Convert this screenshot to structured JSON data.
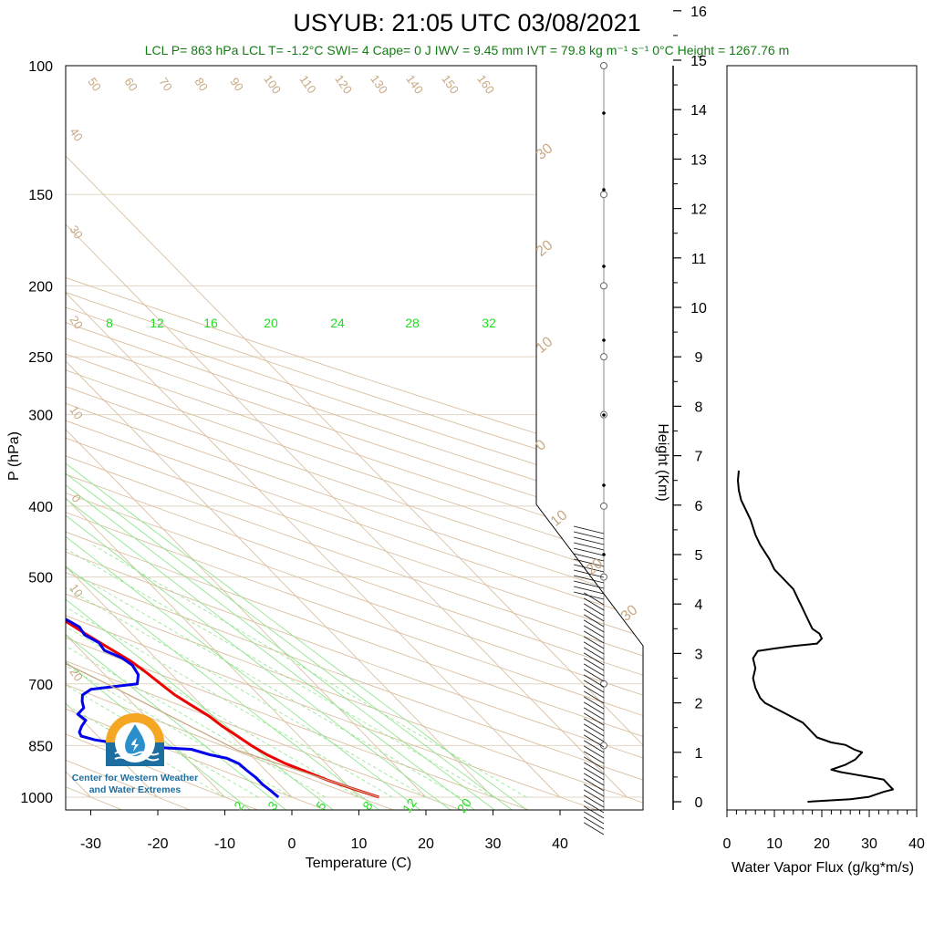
{
  "title": "USYUB: 21:05 UTC 03/08/2021",
  "subtitle": "LCL P= 863 hPa  LCL T= -1.2°C  SWI= 4  Cape= 0 J  IWV = 9.45 mm  IVT = 79.8 kg m⁻¹ s⁻¹  0°C Height = 1267.76 m",
  "logo": {
    "icon": "water-drop-sun-icon",
    "line1": "Center for Western Weather",
    "line2": "and Water Extremes"
  },
  "chart_data": [
    {
      "type": "line",
      "chart": "skew-t",
      "xlabel": "Temperature (C)",
      "ylabel": "P (hPa)",
      "pressure_axis": {
        "scale": "log",
        "range": [
          1000,
          100
        ],
        "ticks": [
          100,
          150,
          200,
          250,
          300,
          400,
          500,
          700,
          850,
          1000
        ]
      },
      "temperature_axis": {
        "range": [
          -34,
          50
        ],
        "ticks": [
          -30,
          -20,
          -10,
          0,
          10,
          20,
          30,
          40
        ]
      },
      "height_axis": {
        "label": "Height (Km)",
        "ticks": [
          0,
          1,
          2,
          3,
          4,
          5,
          6,
          7,
          8,
          9,
          10,
          11,
          12,
          13,
          14,
          15,
          16
        ]
      },
      "isotherm_labels": [
        "50",
        "60",
        "70",
        "80",
        "90",
        "100",
        "110",
        "120",
        "130",
        "140",
        "150",
        "160",
        "40",
        "30",
        "20",
        "10",
        "0",
        "10",
        "20"
      ],
      "dry_adiabat_labels": [
        "30",
        "20",
        "10",
        "0",
        "10",
        "20",
        "30"
      ],
      "mixing_ratio_labels_top": [
        "8",
        "12",
        "16",
        "20",
        "24",
        "28",
        "32"
      ],
      "mixing_ratio_labels_bottom": [
        "2",
        "3",
        "5",
        "8",
        "12",
        "20"
      ],
      "series": [
        {
          "name": "Temperature",
          "color": "#ee0000",
          "points": [
            [
              1000,
              13
            ],
            [
              975,
              10.5
            ],
            [
              950,
              8
            ],
            [
              925,
              6
            ],
            [
              900,
              4
            ],
            [
              875,
              2.5
            ],
            [
              850,
              1.5
            ],
            [
              825,
              0.8
            ],
            [
              800,
              0
            ],
            [
              775,
              -0.5
            ],
            [
              750,
              -1.5
            ],
            [
              725,
              -2.5
            ],
            [
              700,
              -3
            ],
            [
              685,
              -3.3
            ],
            [
              670,
              -3.6
            ],
            [
              650,
              -4.2
            ],
            [
              625,
              -5.5
            ],
            [
              600,
              -6.8
            ],
            [
              575,
              -8
            ],
            [
              550,
              -9.5
            ],
            [
              525,
              -10.8
            ],
            [
              500,
              -12
            ],
            [
              490,
              -13.3
            ],
            [
              480,
              -14.3
            ],
            [
              470,
              -15
            ],
            [
              460,
              -15.3
            ],
            [
              450,
              -16
            ],
            [
              440,
              -16.6
            ],
            [
              430,
              -17.2
            ]
          ]
        },
        {
          "name": "Dew point",
          "color": "#0000ee",
          "points": [
            [
              1000,
              -2
            ],
            [
              980,
              -2.2
            ],
            [
              960,
              -2.5
            ],
            [
              940,
              -2.5
            ],
            [
              920,
              -2.8
            ],
            [
              900,
              -3
            ],
            [
              885,
              -4
            ],
            [
              875,
              -6
            ],
            [
              860,
              -8
            ],
            [
              855,
              -13
            ],
            [
              845,
              -18
            ],
            [
              835,
              -21
            ],
            [
              825,
              -22.5
            ],
            [
              815,
              -22.2
            ],
            [
              800,
              -21
            ],
            [
              785,
              -19.5
            ],
            [
              770,
              -19.8
            ],
            [
              755,
              -18
            ],
            [
              740,
              -17.3
            ],
            [
              725,
              -16.3
            ],
            [
              712,
              -14.2
            ],
            [
              700,
              -6.5
            ],
            [
              680,
              -5
            ],
            [
              660,
              -4.5
            ],
            [
              645,
              -5
            ],
            [
              630,
              -6.5
            ],
            [
              615,
              -6.2
            ],
            [
              600,
              -7.2
            ],
            [
              585,
              -6.8
            ],
            [
              570,
              -7.8
            ],
            [
              560,
              -7.5
            ],
            [
              550,
              -8.2
            ],
            [
              540,
              -9.5
            ],
            [
              525,
              -11.5
            ],
            [
              515,
              -13
            ],
            [
              505,
              -14.3
            ],
            [
              498,
              -16.5
            ],
            [
              490,
              -19
            ],
            [
              485,
              -21
            ],
            [
              478,
              -24
            ],
            [
              472,
              -28.7
            ],
            [
              465,
              -33
            ],
            [
              458,
              -35
            ],
            [
              448,
              -36
            ],
            [
              440,
              -36.2
            ],
            [
              430,
              -35.8
            ]
          ]
        },
        {
          "name": "Parcel",
          "color": "#c8a882",
          "points": [
            [
              1000,
              13
            ],
            [
              863,
              -1.2
            ],
            [
              700,
              -11
            ],
            [
              500,
              -28
            ],
            [
              400,
              -42
            ],
            [
              300,
              -55
            ],
            [
              228,
              -62
            ],
            [
              200,
              -68
            ],
            [
              150,
              -78
            ],
            [
              100,
              -95
            ]
          ]
        }
      ]
    },
    {
      "type": "line",
      "xlabel": "Water Vapor Flux (g/kg*m/s)",
      "ylabel": "Height (Km)",
      "xlim": [
        0,
        40
      ],
      "x_ticks": [
        0,
        10,
        20,
        30,
        40
      ],
      "ylim": [
        0,
        16
      ],
      "series": [
        {
          "name": "",
          "color": "#000000",
          "points": [
            [
              17,
              0
            ],
            [
              26,
              0.05
            ],
            [
              30,
              0.1
            ],
            [
              33,
              0.2
            ],
            [
              35,
              0.25
            ],
            [
              33,
              0.45
            ],
            [
              30,
              0.5
            ],
            [
              27,
              0.55
            ],
            [
              24,
              0.6
            ],
            [
              22,
              0.65
            ],
            [
              25,
              0.75
            ],
            [
              27,
              0.85
            ],
            [
              28.5,
              1
            ],
            [
              27,
              1.05
            ],
            [
              25,
              1.15
            ],
            [
              22,
              1.2
            ],
            [
              19,
              1.3
            ],
            [
              17,
              1.5
            ],
            [
              16,
              1.6
            ],
            [
              14,
              1.7
            ],
            [
              12,
              1.8
            ],
            [
              10,
              1.9
            ],
            [
              8,
              2
            ],
            [
              7,
              2.1
            ],
            [
              6,
              2.3
            ],
            [
              5.5,
              2.5
            ],
            [
              6,
              2.7
            ],
            [
              5.5,
              2.9
            ],
            [
              6.5,
              3.05
            ],
            [
              10,
              3.1
            ],
            [
              14,
              3.15
            ],
            [
              19,
              3.2
            ],
            [
              20,
              3.3
            ],
            [
              19.5,
              3.4
            ],
            [
              18,
              3.5
            ],
            [
              17,
              3.7
            ],
            [
              16,
              3.9
            ],
            [
              15,
              4.1
            ],
            [
              14,
              4.3
            ],
            [
              12,
              4.5
            ],
            [
              10,
              4.7
            ],
            [
              9,
              4.9
            ],
            [
              7,
              5.2
            ],
            [
              6,
              5.4
            ],
            [
              5,
              5.7
            ],
            [
              4,
              5.9
            ],
            [
              3,
              6.1
            ],
            [
              2.5,
              6.3
            ],
            [
              2.3,
              6.5
            ],
            [
              2.5,
              6.7
            ]
          ]
        }
      ]
    }
  ]
}
